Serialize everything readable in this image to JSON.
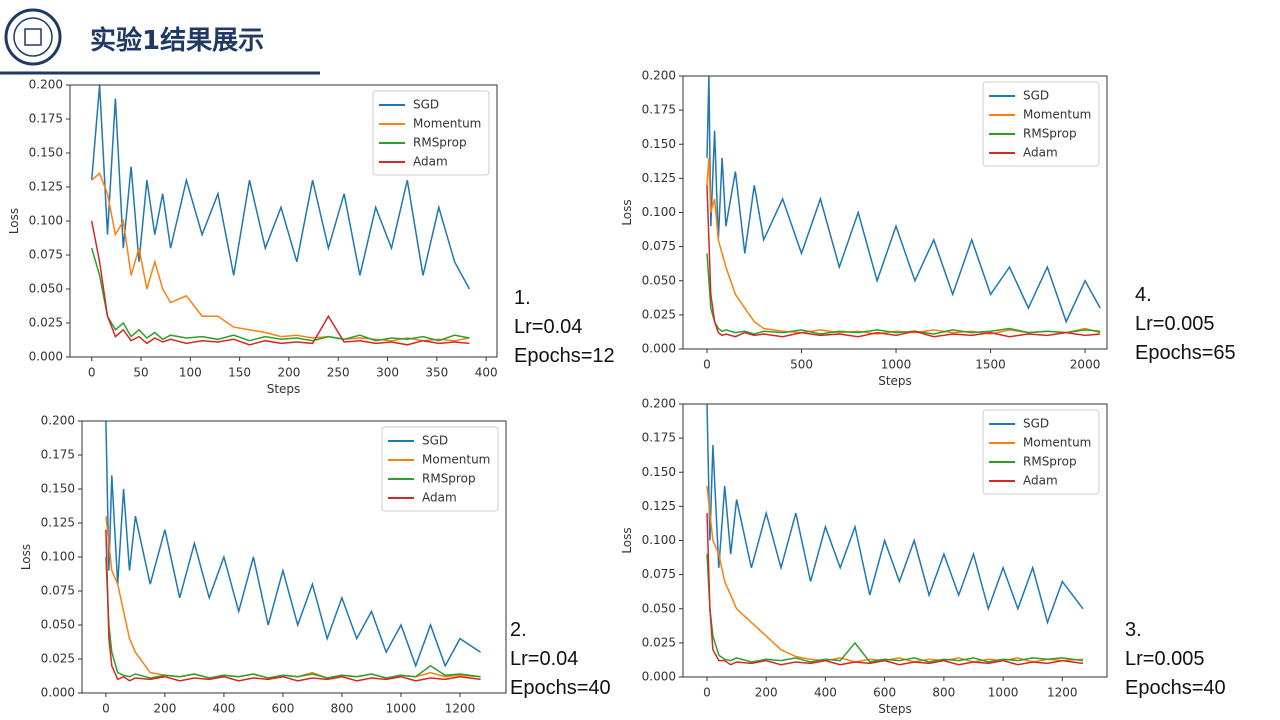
{
  "header": {
    "title": "实验1结果展示"
  },
  "chart_data": [
    {
      "type": "line",
      "ylabel": "Loss",
      "xlabel": "Steps",
      "legend": "upper right",
      "annotation": [
        "1.",
        "Lr=0.04",
        "Epochs=12"
      ],
      "xlim": [
        -22,
        411
      ],
      "xticks": [
        0,
        50,
        100,
        150,
        200,
        250,
        300,
        350,
        400
      ],
      "ylim": [
        0,
        0.2
      ],
      "yticks": [
        {
          "value": 0,
          "label": "0.000"
        },
        0.025,
        {
          "value": 0.05,
          "label": "0.050"
        },
        0.075,
        {
          "value": 0.1,
          "label": "0.100"
        },
        0.125,
        {
          "value": 0.15,
          "label": "0.150"
        },
        0.175,
        {
          "value": 0.2,
          "label": "0.200"
        }
      ],
      "x": [
        0,
        8,
        16,
        24,
        32,
        40,
        48,
        56,
        64,
        72,
        80,
        96,
        112,
        128,
        144,
        160,
        176,
        192,
        208,
        224,
        240,
        256,
        272,
        288,
        304,
        320,
        336,
        352,
        368,
        383
      ],
      "series": [
        {
          "name": "SGD",
          "color": "#1f77b4",
          "values": [
            0.13,
            0.2,
            0.09,
            0.19,
            0.08,
            0.14,
            0.07,
            0.13,
            0.09,
            0.12,
            0.08,
            0.13,
            0.09,
            0.12,
            0.06,
            0.13,
            0.08,
            0.11,
            0.07,
            0.13,
            0.08,
            0.12,
            0.06,
            0.11,
            0.08,
            0.13,
            0.06,
            0.11,
            0.07,
            0.05
          ]
        },
        {
          "name": "Momentum",
          "color": "#ff7f0e",
          "values": [
            0.13,
            0.135,
            0.12,
            0.09,
            0.1,
            0.06,
            0.08,
            0.05,
            0.07,
            0.05,
            0.04,
            0.045,
            0.03,
            0.03,
            0.022,
            0.02,
            0.018,
            0.015,
            0.016,
            0.014,
            0.015,
            0.013,
            0.014,
            0.013,
            0.012,
            0.014,
            0.012,
            0.013,
            0.012,
            0.014
          ]
        },
        {
          "name": "RMSprop",
          "color": "#2ca02c",
          "values": [
            0.08,
            0.06,
            0.03,
            0.02,
            0.025,
            0.015,
            0.02,
            0.014,
            0.018,
            0.013,
            0.016,
            0.014,
            0.015,
            0.013,
            0.016,
            0.012,
            0.015,
            0.013,
            0.014,
            0.012,
            0.015,
            0.013,
            0.016,
            0.012,
            0.014,
            0.013,
            0.015,
            0.012,
            0.016,
            0.014
          ]
        },
        {
          "name": "Adam",
          "color": "#d62728",
          "values": [
            0.1,
            0.07,
            0.03,
            0.015,
            0.02,
            0.012,
            0.015,
            0.01,
            0.014,
            0.011,
            0.013,
            0.01,
            0.012,
            0.011,
            0.013,
            0.009,
            0.012,
            0.01,
            0.011,
            0.01,
            0.03,
            0.011,
            0.012,
            0.01,
            0.011,
            0.009,
            0.012,
            0.01,
            0.011,
            0.01
          ]
        }
      ]
    },
    {
      "type": "line",
      "ylabel": "Loss",
      "legend": "upper right",
      "annotation": [
        "2.",
        "Lr=0.04",
        "Epochs=40"
      ],
      "xlim": [
        -81,
        1356
      ],
      "xticks": [
        0,
        200,
        400,
        600,
        800,
        1000,
        1200
      ],
      "ylim": [
        0,
        0.2
      ],
      "yticks": [
        {
          "value": 0,
          "label": "0.000"
        },
        0.025,
        {
          "value": 0.05,
          "label": "0.050"
        },
        0.075,
        {
          "value": 0.1,
          "label": "0.100"
        },
        0.125,
        {
          "value": 0.15,
          "label": "0.150"
        },
        0.175,
        {
          "value": 0.2,
          "label": "0.200"
        }
      ],
      "x": [
        0,
        10,
        20,
        40,
        60,
        80,
        100,
        150,
        200,
        250,
        300,
        350,
        400,
        450,
        500,
        550,
        600,
        650,
        700,
        750,
        800,
        850,
        900,
        950,
        1000,
        1050,
        1100,
        1150,
        1200,
        1270
      ],
      "series": [
        {
          "name": "SGD",
          "color": "#1f77b4",
          "values": [
            0.2,
            0.09,
            0.16,
            0.08,
            0.15,
            0.09,
            0.13,
            0.08,
            0.12,
            0.07,
            0.11,
            0.07,
            0.1,
            0.06,
            0.1,
            0.05,
            0.09,
            0.05,
            0.08,
            0.04,
            0.07,
            0.04,
            0.06,
            0.03,
            0.05,
            0.02,
            0.05,
            0.02,
            0.04,
            0.03
          ]
        },
        {
          "name": "Momentum",
          "color": "#ff7f0e",
          "values": [
            0.13,
            0.11,
            0.09,
            0.08,
            0.06,
            0.04,
            0.03,
            0.015,
            0.013,
            0.012,
            0.014,
            0.011,
            0.013,
            0.012,
            0.014,
            0.011,
            0.013,
            0.012,
            0.015,
            0.011,
            0.013,
            0.012,
            0.014,
            0.011,
            0.013,
            0.012,
            0.015,
            0.012,
            0.013,
            0.012
          ]
        },
        {
          "name": "RMSprop",
          "color": "#2ca02c",
          "values": [
            0.1,
            0.05,
            0.03,
            0.015,
            0.013,
            0.012,
            0.014,
            0.011,
            0.013,
            0.012,
            0.014,
            0.011,
            0.013,
            0.012,
            0.014,
            0.011,
            0.013,
            0.012,
            0.014,
            0.011,
            0.013,
            0.012,
            0.014,
            0.011,
            0.013,
            0.012,
            0.02,
            0.013,
            0.014,
            0.012
          ]
        },
        {
          "name": "Adam",
          "color": "#d62728",
          "values": [
            0.12,
            0.04,
            0.02,
            0.01,
            0.012,
            0.009,
            0.011,
            0.01,
            0.012,
            0.009,
            0.011,
            0.01,
            0.012,
            0.009,
            0.011,
            0.01,
            0.012,
            0.009,
            0.011,
            0.01,
            0.012,
            0.009,
            0.011,
            0.01,
            0.012,
            0.009,
            0.011,
            0.01,
            0.012,
            0.01
          ]
        }
      ]
    },
    {
      "type": "line",
      "ylabel": "Loss",
      "xlabel": "Steps",
      "legend": "upper right",
      "annotation": [
        "3.",
        "Lr=0.005",
        "Epochs=40"
      ],
      "xlim": [
        -81,
        1351
      ],
      "xticks": [
        0,
        200,
        400,
        600,
        800,
        1000,
        1200
      ],
      "ylim": [
        0,
        0.2
      ],
      "yticks": [
        {
          "value": 0,
          "label": "0.000"
        },
        0.025,
        {
          "value": 0.05,
          "label": "0.050"
        },
        0.075,
        {
          "value": 0.1,
          "label": "0.100"
        },
        0.125,
        {
          "value": 0.15,
          "label": "0.150"
        },
        0.175,
        {
          "value": 0.2,
          "label": "0.200"
        }
      ],
      "x": [
        0,
        10,
        20,
        40,
        60,
        80,
        100,
        150,
        200,
        250,
        300,
        350,
        400,
        450,
        500,
        550,
        600,
        650,
        700,
        750,
        800,
        850,
        900,
        950,
        1000,
        1050,
        1100,
        1150,
        1200,
        1270
      ],
      "series": [
        {
          "name": "SGD",
          "color": "#1f77b4",
          "values": [
            0.2,
            0.1,
            0.17,
            0.08,
            0.14,
            0.09,
            0.13,
            0.08,
            0.12,
            0.08,
            0.12,
            0.07,
            0.11,
            0.08,
            0.11,
            0.06,
            0.1,
            0.07,
            0.1,
            0.06,
            0.09,
            0.06,
            0.09,
            0.05,
            0.08,
            0.05,
            0.08,
            0.04,
            0.07,
            0.05
          ]
        },
        {
          "name": "Momentum",
          "color": "#ff7f0e",
          "values": [
            0.14,
            0.12,
            0.1,
            0.09,
            0.07,
            0.06,
            0.05,
            0.04,
            0.03,
            0.02,
            0.015,
            0.013,
            0.012,
            0.014,
            0.011,
            0.013,
            0.012,
            0.014,
            0.011,
            0.013,
            0.012,
            0.014,
            0.011,
            0.013,
            0.012,
            0.014,
            0.011,
            0.013,
            0.012,
            0.013
          ]
        },
        {
          "name": "RMSprop",
          "color": "#2ca02c",
          "values": [
            0.09,
            0.05,
            0.03,
            0.016,
            0.013,
            0.012,
            0.014,
            0.011,
            0.013,
            0.012,
            0.014,
            0.011,
            0.013,
            0.012,
            0.025,
            0.011,
            0.013,
            0.012,
            0.014,
            0.011,
            0.013,
            0.012,
            0.014,
            0.011,
            0.013,
            0.012,
            0.014,
            0.013,
            0.014,
            0.012
          ]
        },
        {
          "name": "Adam",
          "color": "#d62728",
          "values": [
            0.12,
            0.05,
            0.02,
            0.012,
            0.012,
            0.009,
            0.011,
            0.01,
            0.012,
            0.009,
            0.011,
            0.01,
            0.012,
            0.009,
            0.011,
            0.01,
            0.012,
            0.009,
            0.011,
            0.01,
            0.012,
            0.009,
            0.011,
            0.01,
            0.012,
            0.009,
            0.011,
            0.01,
            0.012,
            0.01
          ]
        }
      ]
    },
    {
      "type": "line",
      "ylabel": "Loss",
      "xlabel": "Steps",
      "legend": "upper right",
      "annotation": [
        "4.",
        "Lr=0.005",
        "Epochs=65"
      ],
      "xlim": [
        -127,
        2116
      ],
      "xticks": [
        0,
        500,
        1000,
        1500,
        2000
      ],
      "ylim": [
        0,
        0.2
      ],
      "yticks": [
        {
          "value": 0,
          "label": "0.000"
        },
        0.025,
        {
          "value": 0.05,
          "label": "0.050"
        },
        0.075,
        {
          "value": 0.1,
          "label": "0.100"
        },
        0.125,
        {
          "value": 0.15,
          "label": "0.150"
        },
        0.175,
        {
          "value": 0.2,
          "label": "0.200"
        }
      ],
      "x": [
        0,
        10,
        20,
        40,
        60,
        80,
        100,
        150,
        200,
        250,
        300,
        400,
        500,
        600,
        700,
        800,
        900,
        1000,
        1100,
        1200,
        1300,
        1400,
        1500,
        1600,
        1700,
        1800,
        1900,
        2000,
        2080
      ],
      "series": [
        {
          "name": "SGD",
          "color": "#1f77b4",
          "values": [
            0.14,
            0.2,
            0.09,
            0.16,
            0.08,
            0.14,
            0.09,
            0.13,
            0.07,
            0.12,
            0.08,
            0.11,
            0.07,
            0.11,
            0.06,
            0.1,
            0.05,
            0.09,
            0.05,
            0.08,
            0.04,
            0.08,
            0.04,
            0.06,
            0.03,
            0.06,
            0.02,
            0.05,
            0.03
          ]
        },
        {
          "name": "Momentum",
          "color": "#ff7f0e",
          "values": [
            0.12,
            0.14,
            0.1,
            0.11,
            0.08,
            0.07,
            0.06,
            0.04,
            0.03,
            0.02,
            0.015,
            0.013,
            0.012,
            0.014,
            0.012,
            0.013,
            0.011,
            0.013,
            0.012,
            0.014,
            0.012,
            0.013,
            0.011,
            0.014,
            0.012,
            0.013,
            0.012,
            0.015,
            0.012
          ]
        },
        {
          "name": "RMSprop",
          "color": "#2ca02c",
          "values": [
            0.07,
            0.05,
            0.03,
            0.02,
            0.015,
            0.013,
            0.014,
            0.012,
            0.013,
            0.011,
            0.013,
            0.012,
            0.014,
            0.011,
            0.013,
            0.012,
            0.014,
            0.012,
            0.013,
            0.011,
            0.014,
            0.012,
            0.013,
            0.015,
            0.012,
            0.013,
            0.012,
            0.014,
            0.013
          ]
        },
        {
          "name": "Adam",
          "color": "#d62728",
          "values": [
            0.12,
            0.08,
            0.04,
            0.02,
            0.012,
            0.01,
            0.011,
            0.009,
            0.012,
            0.01,
            0.011,
            0.009,
            0.012,
            0.01,
            0.011,
            0.009,
            0.012,
            0.01,
            0.013,
            0.009,
            0.011,
            0.01,
            0.012,
            0.009,
            0.011,
            0.01,
            0.012,
            0.01,
            0.011
          ]
        }
      ]
    }
  ]
}
